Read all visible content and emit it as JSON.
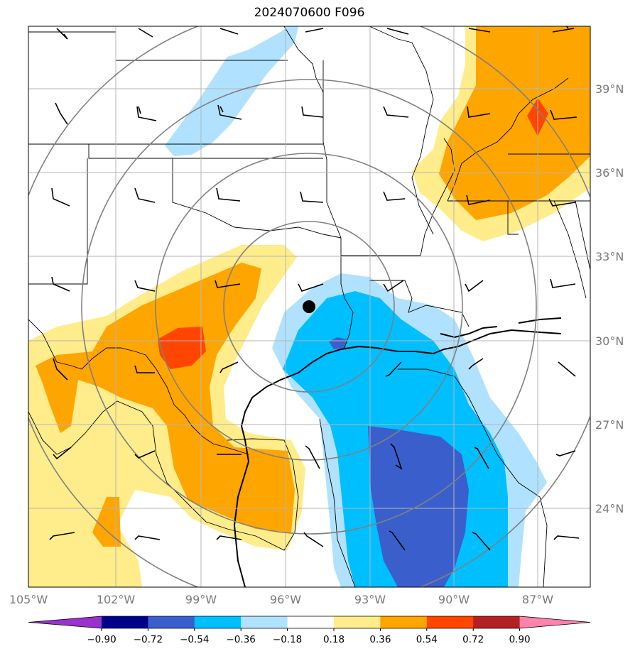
{
  "title": "2024070600 F096",
  "map": {
    "lon_labels": [
      "105°W",
      "102°W",
      "99°W",
      "96°W",
      "93°W",
      "90°W",
      "87°W"
    ],
    "lat_labels": [
      "39°N",
      "36°N",
      "33°N",
      "30°N",
      "27°N",
      "24°N"
    ],
    "lon_values": [
      -105,
      -102,
      -99,
      -96,
      -93,
      -90,
      -87
    ],
    "lat_values": [
      39,
      36,
      33,
      30,
      27,
      24
    ],
    "lon_range": [
      -105,
      -85
    ],
    "lat_range": [
      21.3,
      41.2
    ],
    "gridlines": true,
    "range_rings": "concentric gray circles centered on marker",
    "center_marker": {
      "lon": -95.1,
      "lat": 31.2
    }
  },
  "colorbar": {
    "tick_labels": [
      "−0.90",
      "−0.72",
      "−0.54",
      "−0.36",
      "−0.18",
      "0.18",
      "0.36",
      "0.54",
      "0.72",
      "0.90"
    ],
    "levels": [
      -0.9,
      -0.72,
      -0.54,
      -0.36,
      -0.18,
      0.18,
      0.36,
      0.54,
      0.72,
      0.9
    ],
    "colors": [
      "#9932cc",
      "#00008b",
      "#3a5fcd",
      "#00bfff",
      "#b0e2ff",
      "#ffffff",
      "#ffec8b",
      "#ffa500",
      "#ff4500",
      "#b22222",
      "#ff82ab"
    ],
    "extend": "both"
  }
}
